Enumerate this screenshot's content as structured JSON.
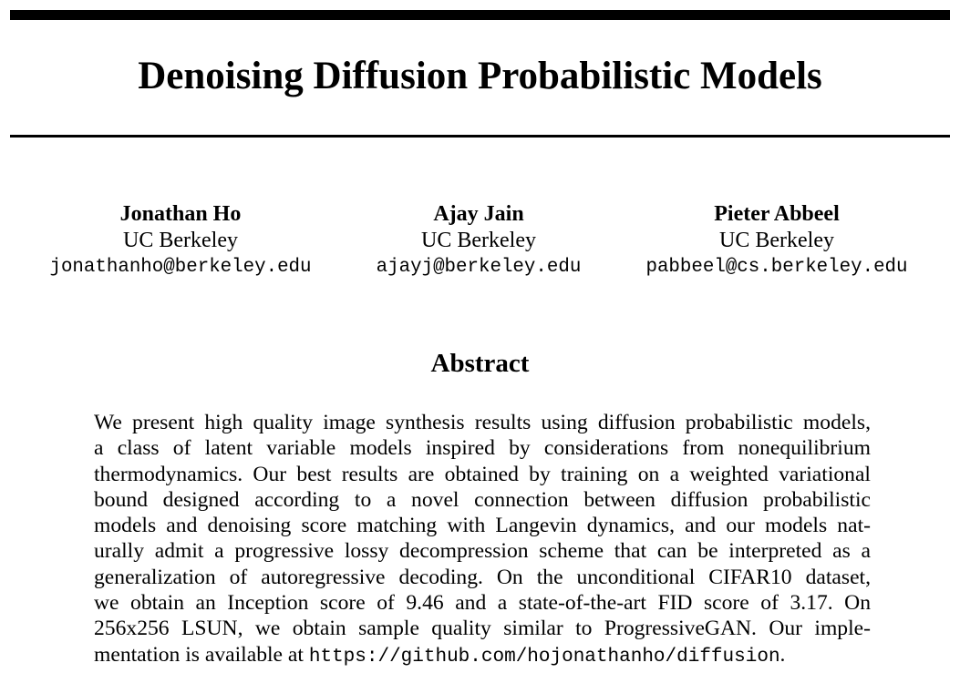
{
  "paper": {
    "title": "Denoising Diffusion Probabilistic Models",
    "authors": [
      {
        "name": "Jonathan Ho",
        "affiliation": "UC Berkeley",
        "email": "jonathanho@berkeley.edu"
      },
      {
        "name": "Ajay Jain",
        "affiliation": "UC Berkeley",
        "email": "ajayj@berkeley.edu"
      },
      {
        "name": "Pieter Abbeel",
        "affiliation": "UC Berkeley",
        "email": "pabbeel@cs.berkeley.edu"
      }
    ],
    "abstract": {
      "heading": "Abstract",
      "lines": [
        "We present high quality image synthesis results using diffusion probabilistic models,",
        "a class of latent variable models inspired by considerations from nonequilibrium",
        "thermodynamics. Our best results are obtained by training on a weighted variational",
        "bound designed according to a novel connection between diffusion probabilistic",
        "models and denoising score matching with Langevin dynamics, and our models nat-",
        "urally admit a progressive lossy decompression scheme that can be interpreted as a",
        "generalization of autoregressive decoding. On the unconditional CIFAR10 dataset,",
        "we obtain an Inception score of 9.46 and a state-of-the-art FID score of 3.17. On",
        "256x256 LSUN, we obtain sample quality similar to ProgressiveGAN. Our imple-"
      ],
      "last_line_prefix": "mentation is available at ",
      "code_url": "https://github.com/hojonathanho/diffusion",
      "last_line_suffix": "."
    }
  }
}
